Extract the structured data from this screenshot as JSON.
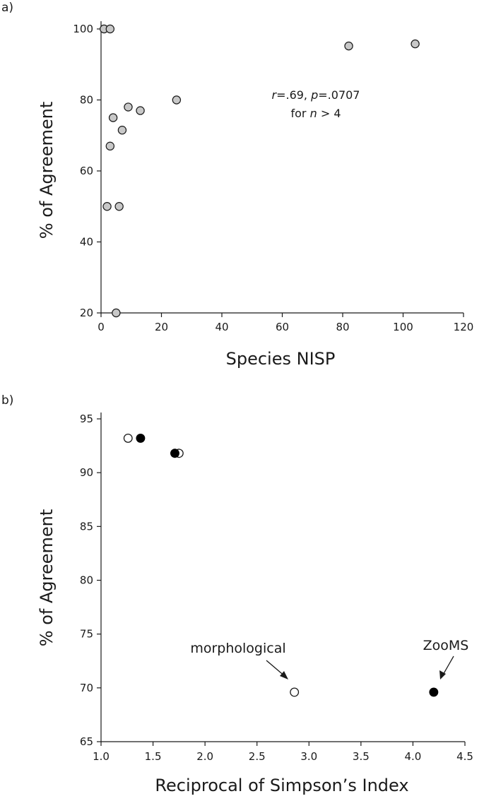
{
  "chart_data": [
    {
      "type": "scatter",
      "panel_label": "a)",
      "xlabel": "Species NISP",
      "ylabel": "% of Agreement",
      "xlim": [
        0,
        120
      ],
      "ylim": [
        20,
        100
      ],
      "xticks": [
        0,
        20,
        40,
        60,
        80,
        100,
        120
      ],
      "yticks": [
        20,
        40,
        60,
        80,
        100
      ],
      "marker_color": "#c8c8c8",
      "marker_edge": "#1a1a1a",
      "points": [
        {
          "x": 1,
          "y": 100
        },
        {
          "x": 3,
          "y": 100
        },
        {
          "x": 82,
          "y": 95.2
        },
        {
          "x": 104,
          "y": 95.8
        },
        {
          "x": 25,
          "y": 80
        },
        {
          "x": 9,
          "y": 78
        },
        {
          "x": 13,
          "y": 77
        },
        {
          "x": 4,
          "y": 75
        },
        {
          "x": 7,
          "y": 71.5
        },
        {
          "x": 3,
          "y": 67
        },
        {
          "x": 2,
          "y": 50
        },
        {
          "x": 6,
          "y": 50
        },
        {
          "x": 5,
          "y": 20
        }
      ],
      "annotation": {
        "r_symbol": "r",
        "r_value": "=.69, ",
        "p_symbol": "p",
        "p_value": "=.0707",
        "n_prefix": "for ",
        "n_symbol": "n",
        "n_suffix": " > 4"
      }
    },
    {
      "type": "scatter",
      "panel_label": "b)",
      "xlabel": "Reciprocal of Simpson’s Index",
      "ylabel": "% of Agreement",
      "xlim": [
        1.0,
        4.5
      ],
      "ylim": [
        65,
        95
      ],
      "xticks": [
        "1.0",
        "1.5",
        "2.0",
        "2.5",
        "3.0",
        "3.5",
        "4.0",
        "4.5"
      ],
      "yticks": [
        65,
        70,
        75,
        80,
        85,
        90,
        95
      ],
      "series": [
        {
          "name": "morphological",
          "fill": "#ffffff",
          "edge": "#1a1a1a",
          "points": [
            {
              "x": 1.26,
              "y": 93.2
            },
            {
              "x": 1.75,
              "y": 91.8
            },
            {
              "x": 2.86,
              "y": 69.6
            }
          ]
        },
        {
          "name": "ZooMS",
          "fill": "#000000",
          "edge": "#000000",
          "points": [
            {
              "x": 1.38,
              "y": 93.2
            },
            {
              "x": 1.71,
              "y": 91.8
            },
            {
              "x": 4.2,
              "y": 69.6
            }
          ]
        }
      ]
    }
  ]
}
